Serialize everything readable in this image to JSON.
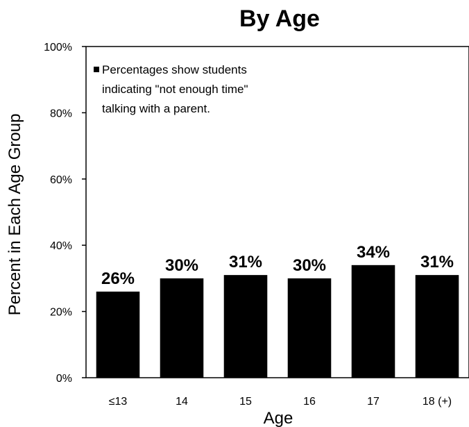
{
  "chart_data": {
    "type": "bar",
    "title": "By Age",
    "xlabel": "Age",
    "ylabel": "Percent in Each Age Group",
    "categories": [
      "≤13",
      "14",
      "15",
      "16",
      "17",
      "18 (+)"
    ],
    "values": [
      26,
      30,
      31,
      30,
      34,
      31
    ],
    "data_labels": [
      "26%",
      "30%",
      "31%",
      "30%",
      "34%",
      "31%"
    ],
    "y_ticks": [
      "0%",
      "20%",
      "40%",
      "60%",
      "80%",
      "100%"
    ],
    "ylim": [
      0,
      100
    ],
    "y_unit": "percent",
    "legend": {
      "position": "top-left",
      "lines": [
        "Percentages show students",
        "indicating \"not enough time\"",
        "talking with a parent."
      ]
    },
    "grid": false,
    "bar_color": "#000000"
  }
}
